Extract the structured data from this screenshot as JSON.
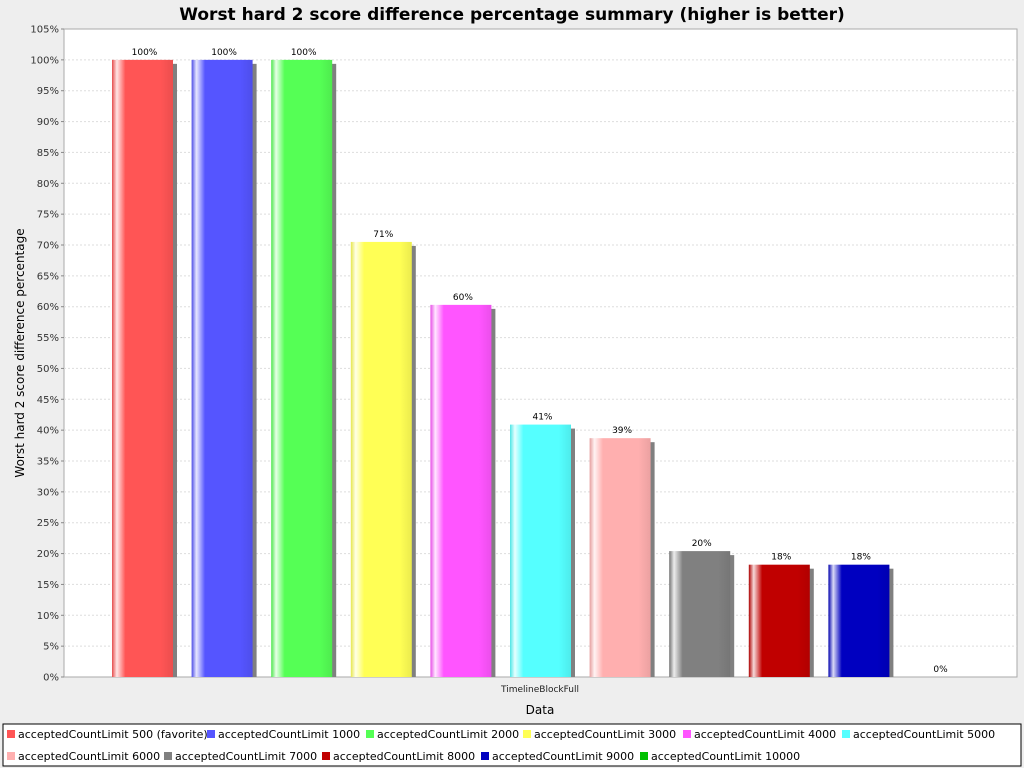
{
  "chart_data": {
    "type": "bar",
    "title": "Worst hard 2 score difference percentage summary (higher is better)",
    "xlabel": "Data",
    "ylabel": "Worst hard 2 score difference percentage",
    "categories": [
      "TimelineBlockFull"
    ],
    "ylim": [
      0,
      105
    ],
    "ytick_step": 5,
    "value_suffix": "%",
    "grid": true,
    "legend_position": "bottom",
    "series": [
      {
        "name": "acceptedCountLimit 500 (favorite)",
        "values": [
          100
        ],
        "label": "100%",
        "color": "#ff5555"
      },
      {
        "name": "acceptedCountLimit 1000",
        "values": [
          100
        ],
        "label": "100%",
        "color": "#5555ff"
      },
      {
        "name": "acceptedCountLimit 2000",
        "values": [
          100
        ],
        "label": "100%",
        "color": "#55ff55"
      },
      {
        "name": "acceptedCountLimit 3000",
        "values": [
          70.5
        ],
        "label": "71%",
        "color": "#ffff55"
      },
      {
        "name": "acceptedCountLimit 4000",
        "values": [
          60.3
        ],
        "label": "60%",
        "color": "#ff55ff"
      },
      {
        "name": "acceptedCountLimit 5000",
        "values": [
          40.9
        ],
        "label": "41%",
        "color": "#55ffff"
      },
      {
        "name": "acceptedCountLimit 6000",
        "values": [
          38.7
        ],
        "label": "39%",
        "color": "#ffafaf"
      },
      {
        "name": "acceptedCountLimit 7000",
        "values": [
          20.4
        ],
        "label": "20%",
        "color": "#808080"
      },
      {
        "name": "acceptedCountLimit 8000",
        "values": [
          18.2
        ],
        "label": "18%",
        "color": "#c00000"
      },
      {
        "name": "acceptedCountLimit 9000",
        "values": [
          18.2
        ],
        "label": "18%",
        "color": "#0000c0"
      },
      {
        "name": "acceptedCountLimit 10000",
        "values": [
          0
        ],
        "label": "0%",
        "color": "#00c000"
      }
    ]
  }
}
